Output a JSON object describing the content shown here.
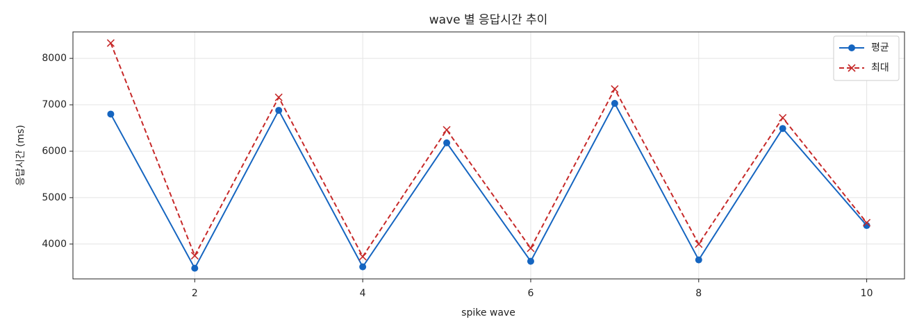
{
  "chart_data": {
    "type": "line",
    "title": "wave 별 응답시간 추이",
    "x_label": "spike wave",
    "y_label": "응답시간 (ms)",
    "x": [
      1,
      2,
      3,
      4,
      5,
      6,
      7,
      8,
      9,
      10
    ],
    "series": [
      {
        "name": "평균",
        "color": "#1565c0",
        "marker": "o",
        "linestyle": "-",
        "values": [
          6800,
          3480,
          6880,
          3510,
          6180,
          3630,
          7030,
          3660,
          6490,
          4400
        ]
      },
      {
        "name": "최대",
        "color": "#c62828",
        "marker": "x",
        "linestyle": "--",
        "values": [
          8330,
          3750,
          7160,
          3730,
          6460,
          3910,
          7340,
          4000,
          6720,
          4460
        ]
      }
    ],
    "xlim": [
      0.55,
      10.45
    ],
    "ylim": [
      3250,
      8570
    ],
    "xticks": [
      2,
      4,
      6,
      8,
      10
    ],
    "yticks": [
      4000,
      5000,
      6000,
      7000,
      8000
    ],
    "grid": true,
    "legend": "upper right"
  }
}
